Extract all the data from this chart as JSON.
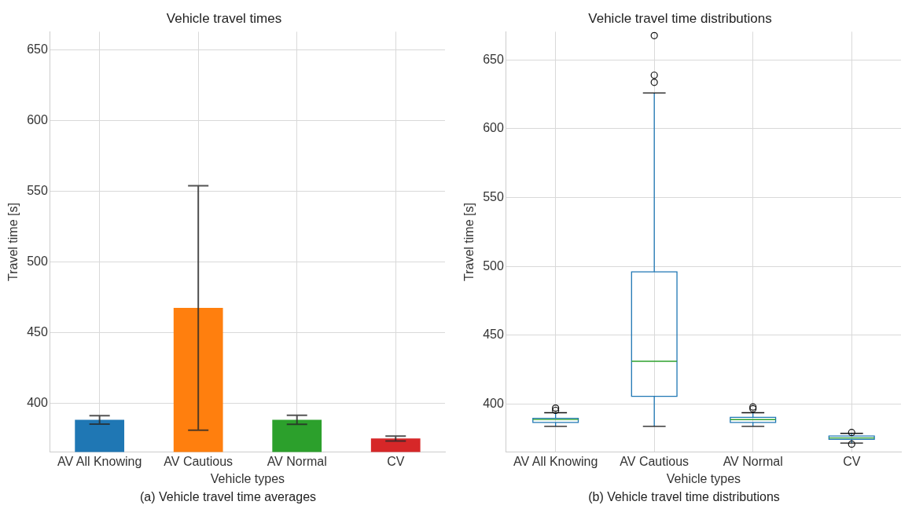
{
  "chart_data": [
    {
      "type": "bar",
      "title": "Vehicle travel times",
      "xlabel": "Vehicle types",
      "ylabel": "Travel time [s]",
      "categories": [
        "AV All Knowing",
        "AV Cautious",
        "AV Normal",
        "CV"
      ],
      "values": [
        388.3,
        467.5,
        388.3,
        375.1
      ],
      "errors": [
        3,
        86.5,
        3.2,
        1.7
      ],
      "colors": [
        "#1f77b4",
        "#ff7f0e",
        "#2ca02c",
        "#d62728"
      ],
      "ylim": [
        365.5,
        663
      ],
      "yticks": [
        400,
        450,
        500,
        550,
        600,
        650
      ],
      "grid": true,
      "legend": false,
      "annotations": [
        "(a) Vehicle travel time averages"
      ]
    },
    {
      "type": "box",
      "title": "Vehicle travel time distributions",
      "xlabel": "Vehicle types",
      "ylabel": "Travel time [s]",
      "categories": [
        "AV All Knowing",
        "AV Cautious",
        "AV Normal",
        "CV"
      ],
      "boxes": [
        {
          "low": 383.7,
          "q1": 386.5,
          "median": 388.7,
          "q3": 389.5,
          "high": 393.6,
          "outliers": [
            395.3,
            397
          ]
        },
        {
          "low": 383.7,
          "q1": 405.5,
          "median": 431,
          "q3": 496,
          "high": 626,
          "outliers": [
            633.7,
            638.9,
            667.7
          ]
        },
        {
          "low": 383.7,
          "q1": 386.5,
          "median": 388.6,
          "q3": 390.3,
          "high": 393.6,
          "outliers": [
            396.5,
            397.8
          ]
        },
        {
          "low": 371.6,
          "q1": 374.3,
          "median": 375.3,
          "q3": 376.7,
          "high": 378.6,
          "outliers": [
            370.8,
            379.2
          ]
        }
      ],
      "color": "#1f77b4",
      "ylim": [
        365,
        670.5
      ],
      "yticks": [
        400,
        450,
        500,
        550,
        600,
        650
      ],
      "grid": true,
      "legend": false,
      "annotations": [
        "(b) Vehicle travel time distributions"
      ]
    }
  ]
}
